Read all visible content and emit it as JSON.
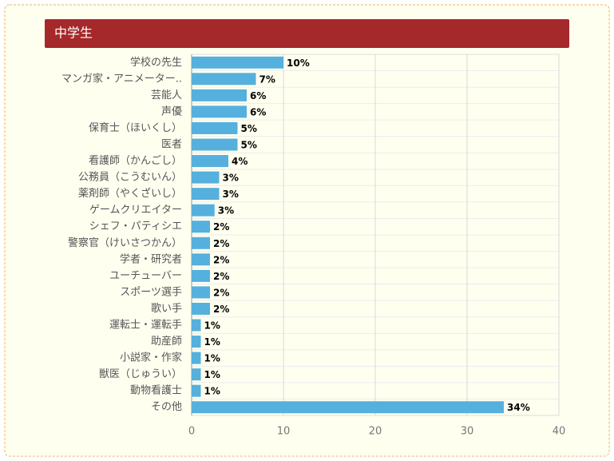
{
  "chart_data": {
    "type": "bar",
    "orientation": "horizontal",
    "title": "中学生",
    "categories": [
      "学校の先生",
      "マンガ家・アニメーター..",
      "芸能人",
      "声優",
      "保育士（ほいくし）",
      "医者",
      "看護師（かんごし）",
      "公務員（こうむいん）",
      "薬剤師（やくざいし）",
      "ゲームクリエイター",
      "シェフ・パティシエ",
      "警察官（けいさつかん）",
      "学者・研究者",
      "ユーチューバー",
      "スポーツ選手",
      "歌い手",
      "運転士・運転手",
      "助産師",
      "小説家・作家",
      "獣医（じゅうい）",
      "動物看護士",
      "その他"
    ],
    "values": [
      10,
      7,
      6,
      6,
      5,
      5,
      4,
      3,
      3,
      2.5,
      2,
      2,
      2,
      2,
      2,
      2,
      1,
      1,
      1,
      1,
      1,
      34
    ],
    "value_labels": [
      "10%",
      "7%",
      "6%",
      "6%",
      "5%",
      "5%",
      "4%",
      "3%",
      "3%",
      "3%",
      "2%",
      "2%",
      "2%",
      "2%",
      "2%",
      "2%",
      "1%",
      "1%",
      "1%",
      "1%",
      "1%",
      "34%"
    ],
    "color": "#55b0de",
    "xlim": [
      0,
      40
    ],
    "xticks": [
      0,
      10,
      20,
      30,
      40
    ],
    "grid": true
  }
}
